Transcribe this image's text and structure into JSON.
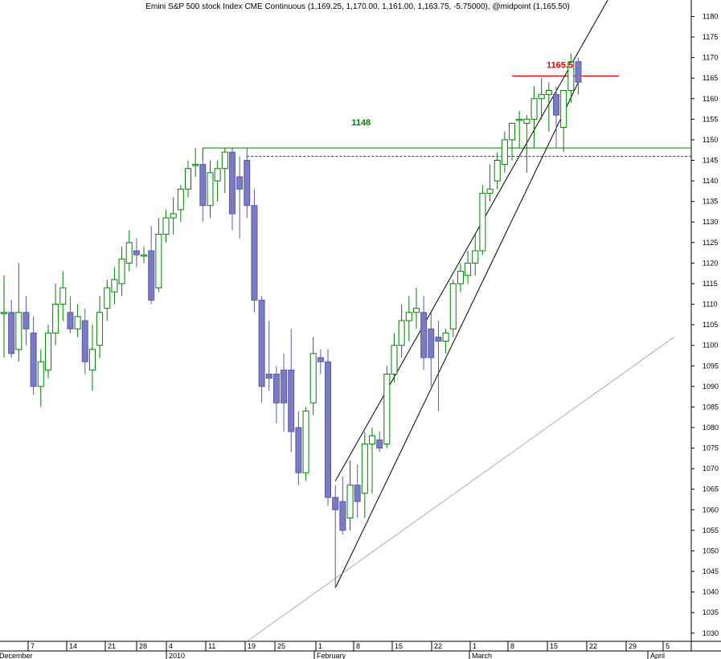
{
  "chart_data": {
    "type": "candlestick",
    "title": "Emini S&P 500 stock Index CME Continuous (1,169.25, 1,170.00, 1,161.00, 1,163.75, -5.75000), @midpoint (1,165.50)",
    "ylim": [
      1028,
      1184
    ],
    "y_ticks": [
      1030,
      1035,
      1040,
      1045,
      1050,
      1055,
      1060,
      1065,
      1070,
      1075,
      1080,
      1085,
      1090,
      1095,
      1100,
      1105,
      1110,
      1115,
      1120,
      1125,
      1130,
      1135,
      1140,
      1145,
      1150,
      1155,
      1160,
      1165,
      1170,
      1175,
      1180
    ],
    "x_day_ticks": [
      "7",
      "14",
      "21",
      "28",
      "4",
      "11",
      "19",
      "25",
      "1",
      "8",
      "15",
      "22",
      "1",
      "8",
      "15",
      "22",
      "29",
      "5"
    ],
    "x_month_labels": [
      "December",
      "2010",
      "February",
      "March",
      "April"
    ],
    "colors": {
      "up": "#008000",
      "down_fill": "#7b7bc4",
      "down_edge": "#5a5aa8"
    },
    "candles": [
      {
        "o": 1108,
        "h": 1117,
        "l": 1097,
        "c": 1108
      },
      {
        "o": 1108,
        "h": 1111,
        "l": 1097,
        "c": 1098
      },
      {
        "o": 1099,
        "h": 1120,
        "l": 1096,
        "c": 1108
      },
      {
        "o": 1108,
        "h": 1112,
        "l": 1100,
        "c": 1104
      },
      {
        "o": 1103,
        "h": 1107,
        "l": 1088,
        "c": 1090
      },
      {
        "o": 1090,
        "h": 1099,
        "l": 1085,
        "c": 1096
      },
      {
        "o": 1094,
        "h": 1105,
        "l": 1092,
        "c": 1103
      },
      {
        "o": 1103,
        "h": 1115,
        "l": 1100,
        "c": 1110
      },
      {
        "o": 1110,
        "h": 1118,
        "l": 1106,
        "c": 1114
      },
      {
        "o": 1108,
        "h": 1112,
        "l": 1103,
        "c": 1104
      },
      {
        "o": 1104,
        "h": 1110,
        "l": 1102,
        "c": 1107
      },
      {
        "o": 1106,
        "h": 1109,
        "l": 1093,
        "c": 1096
      },
      {
        "o": 1094,
        "h": 1105,
        "l": 1089,
        "c": 1099
      },
      {
        "o": 1100,
        "h": 1112,
        "l": 1097,
        "c": 1108
      },
      {
        "o": 1109,
        "h": 1116,
        "l": 1106,
        "c": 1114
      },
      {
        "o": 1113,
        "h": 1119,
        "l": 1110,
        "c": 1116
      },
      {
        "o": 1115,
        "h": 1124,
        "l": 1112,
        "c": 1121
      },
      {
        "o": 1120,
        "h": 1128,
        "l": 1118,
        "c": 1125
      },
      {
        "o": 1123,
        "h": 1126,
        "l": 1119,
        "c": 1122
      },
      {
        "o": 1122,
        "h": 1124,
        "l": 1120,
        "c": 1122
      },
      {
        "o": 1123,
        "h": 1129,
        "l": 1110,
        "c": 1111
      },
      {
        "o": 1114,
        "h": 1131,
        "l": 1113,
        "c": 1127
      },
      {
        "o": 1127,
        "h": 1133,
        "l": 1125,
        "c": 1131
      },
      {
        "o": 1131,
        "h": 1136,
        "l": 1127,
        "c": 1132
      },
      {
        "o": 1133,
        "h": 1139,
        "l": 1130,
        "c": 1138
      },
      {
        "o": 1138,
        "h": 1145,
        "l": 1136,
        "c": 1143
      },
      {
        "o": 1144,
        "h": 1148,
        "l": 1141,
        "c": 1144
      },
      {
        "o": 1144,
        "h": 1147,
        "l": 1130,
        "c": 1134
      },
      {
        "o": 1134,
        "h": 1145,
        "l": 1131,
        "c": 1142
      },
      {
        "o": 1140,
        "h": 1145,
        "l": 1135,
        "c": 1143
      },
      {
        "o": 1143,
        "h": 1148,
        "l": 1137,
        "c": 1147
      },
      {
        "o": 1147,
        "h": 1148,
        "l": 1128,
        "c": 1132
      },
      {
        "o": 1141,
        "h": 1146,
        "l": 1126,
        "c": 1138
      },
      {
        "o": 1145,
        "h": 1148,
        "l": 1131,
        "c": 1134
      },
      {
        "o": 1134,
        "h": 1138,
        "l": 1108,
        "c": 1111
      },
      {
        "o": 1111,
        "h": 1112,
        "l": 1086,
        "c": 1090
      },
      {
        "o": 1093,
        "h": 1106,
        "l": 1089,
        "c": 1092
      },
      {
        "o": 1093,
        "h": 1095,
        "l": 1081,
        "c": 1086
      },
      {
        "o": 1094,
        "h": 1098,
        "l": 1079,
        "c": 1086
      },
      {
        "o": 1094,
        "h": 1104,
        "l": 1074,
        "c": 1079
      },
      {
        "o": 1080,
        "h": 1084,
        "l": 1066,
        "c": 1069
      },
      {
        "o": 1069,
        "h": 1085,
        "l": 1067,
        "c": 1084
      },
      {
        "o": 1086,
        "h": 1102,
        "l": 1083,
        "c": 1098
      },
      {
        "o": 1097,
        "h": 1099,
        "l": 1093,
        "c": 1096
      },
      {
        "o": 1096,
        "h": 1099,
        "l": 1061,
        "c": 1063
      },
      {
        "o": 1063,
        "h": 1066,
        "l": 1041,
        "c": 1060
      },
      {
        "o": 1062,
        "h": 1068,
        "l": 1054,
        "c": 1055
      },
      {
        "o": 1058,
        "h": 1072,
        "l": 1055,
        "c": 1066
      },
      {
        "o": 1066,
        "h": 1071,
        "l": 1058,
        "c": 1062
      },
      {
        "o": 1064,
        "h": 1079,
        "l": 1058,
        "c": 1076
      },
      {
        "o": 1076,
        "h": 1080,
        "l": 1064,
        "c": 1078
      },
      {
        "o": 1077,
        "h": 1079,
        "l": 1074,
        "c": 1075
      },
      {
        "o": 1076,
        "h": 1095,
        "l": 1075,
        "c": 1093
      },
      {
        "o": 1093,
        "h": 1103,
        "l": 1091,
        "c": 1100
      },
      {
        "o": 1100,
        "h": 1110,
        "l": 1097,
        "c": 1106
      },
      {
        "o": 1106,
        "h": 1112,
        "l": 1101,
        "c": 1108
      },
      {
        "o": 1108,
        "h": 1114,
        "l": 1104,
        "c": 1109
      },
      {
        "o": 1108,
        "h": 1112,
        "l": 1094,
        "c": 1097
      },
      {
        "o": 1104,
        "h": 1108,
        "l": 1090,
        "c": 1097
      },
      {
        "o": 1102,
        "h": 1106,
        "l": 1084,
        "c": 1101
      },
      {
        "o": 1101,
        "h": 1104,
        "l": 1098,
        "c": 1103
      },
      {
        "o": 1104,
        "h": 1116,
        "l": 1102,
        "c": 1115
      },
      {
        "o": 1115,
        "h": 1120,
        "l": 1113,
        "c": 1118
      },
      {
        "o": 1117,
        "h": 1123,
        "l": 1115,
        "c": 1120
      },
      {
        "o": 1120,
        "h": 1127,
        "l": 1117,
        "c": 1123
      },
      {
        "o": 1123,
        "h": 1139,
        "l": 1122,
        "c": 1137
      },
      {
        "o": 1137,
        "h": 1144,
        "l": 1135,
        "c": 1138
      },
      {
        "o": 1140,
        "h": 1147,
        "l": 1138,
        "c": 1145
      },
      {
        "o": 1144,
        "h": 1152,
        "l": 1142,
        "c": 1150
      },
      {
        "o": 1150,
        "h": 1154,
        "l": 1145,
        "c": 1154
      },
      {
        "o": 1155,
        "h": 1157,
        "l": 1148,
        "c": 1155
      },
      {
        "o": 1154,
        "h": 1156,
        "l": 1142,
        "c": 1155
      },
      {
        "o": 1155,
        "h": 1163,
        "l": 1148,
        "c": 1160
      },
      {
        "o": 1160,
        "h": 1165,
        "l": 1155,
        "c": 1161
      },
      {
        "o": 1161,
        "h": 1164,
        "l": 1152,
        "c": 1162
      },
      {
        "o": 1161,
        "h": 1163,
        "l": 1148,
        "c": 1156
      },
      {
        "o": 1153,
        "h": 1162,
        "l": 1147,
        "c": 1162
      },
      {
        "o": 1162,
        "h": 1171,
        "l": 1159,
        "c": 1169
      },
      {
        "o": 1169,
        "h": 1170,
        "l": 1161,
        "c": 1164
      }
    ],
    "annotations": [
      {
        "text": "1165.5",
        "value": 1165.5,
        "color": "#e00000"
      },
      {
        "text": "1148",
        "value": 1148,
        "color": "#008000"
      }
    ],
    "reference_lines": {
      "resistance": {
        "value": 1148,
        "color": "#008000"
      },
      "dashed_level": {
        "value": 1146,
        "color": "#000000"
      },
      "red_level": {
        "value": 1165.5,
        "color": "#e00000"
      }
    },
    "trendlines": [
      {
        "name": "channel-upper",
        "from": [
          45,
          1067
        ],
        "to": [
          82,
          1184
        ]
      },
      {
        "name": "channel-lower",
        "from": [
          45,
          1041
        ],
        "to": [
          78,
          1164
        ]
      },
      {
        "name": "long-term",
        "from": [
          33,
          1028
        ],
        "to": [
          91,
          1102
        ]
      }
    ]
  }
}
